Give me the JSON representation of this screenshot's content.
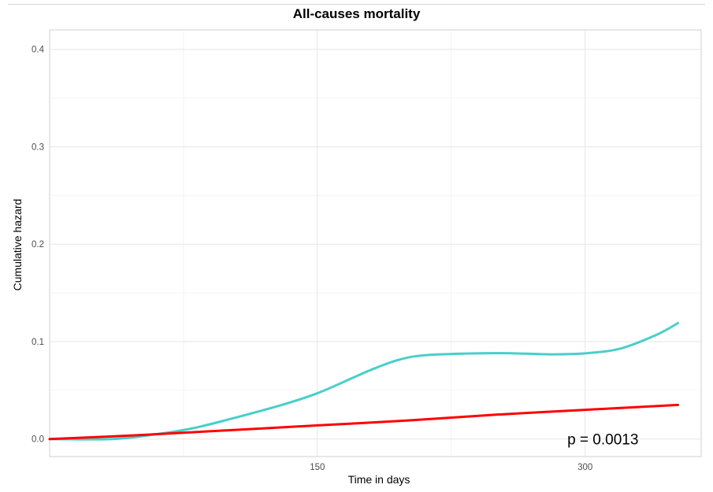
{
  "chart_data": {
    "type": "line",
    "title": "All-causes mortality",
    "xlabel": "Time in days",
    "ylabel": "Cumulative hazard",
    "xlim": [
      0,
      365
    ],
    "ylim": [
      -0.018,
      0.42
    ],
    "x_ticks": [
      150,
      300
    ],
    "y_ticks": [
      0.0,
      0.1,
      0.2,
      0.3,
      0.4
    ],
    "x_tick_labels": [
      "150",
      "300"
    ],
    "y_tick_labels": [
      "0.0",
      "0.1",
      "0.2",
      "0.3",
      "0.4"
    ],
    "grid": true,
    "annotation": {
      "text": "p = 0.0013",
      "x": 290,
      "y": 0.0
    },
    "series": [
      {
        "color": "#48cfca",
        "x": [
          0,
          35,
          60,
          80,
          100,
          130,
          150,
          170,
          180,
          195,
          210,
          240,
          260,
          280,
          300,
          320,
          340,
          352
        ],
        "y": [
          0.0,
          0.0,
          0.005,
          0.011,
          0.02,
          0.035,
          0.047,
          0.063,
          0.071,
          0.081,
          0.086,
          0.088,
          0.088,
          0.087,
          0.088,
          0.093,
          0.107,
          0.119
        ]
      },
      {
        "color": "#ff0000",
        "x": [
          0,
          50,
          100,
          150,
          200,
          250,
          300,
          352
        ],
        "y": [
          0.0,
          0.004,
          0.009,
          0.014,
          0.019,
          0.025,
          0.03,
          0.035
        ]
      }
    ]
  }
}
